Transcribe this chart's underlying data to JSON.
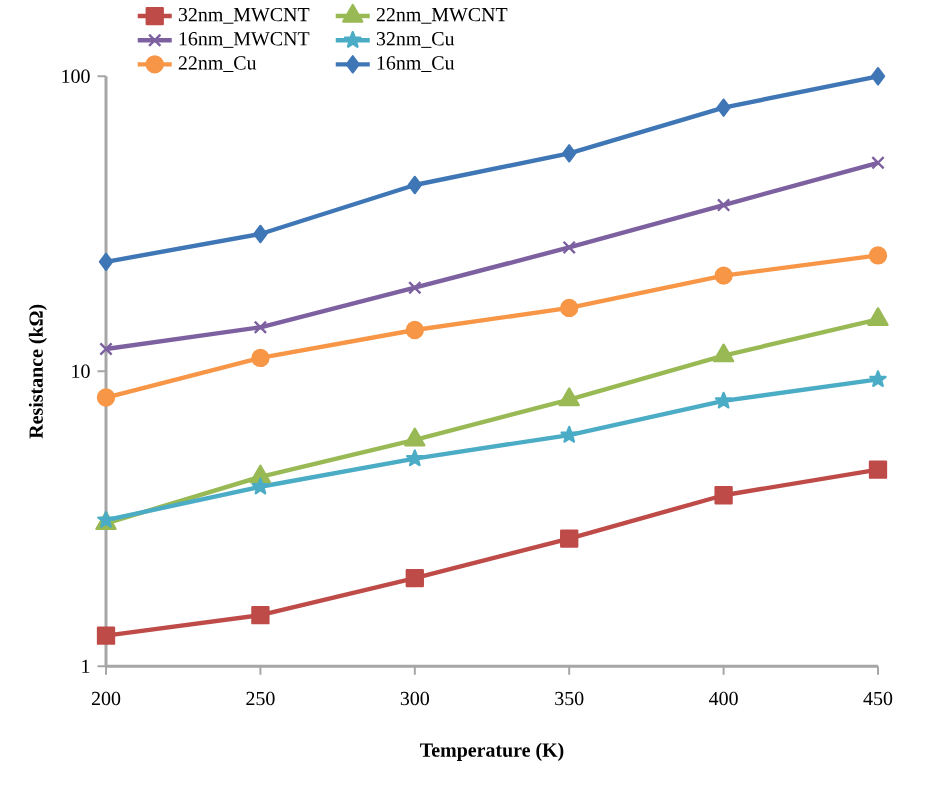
{
  "chart_data": {
    "type": "line",
    "xlabel": "Temperature (K)",
    "ylabel": "Resistance (kΩ)",
    "x": [
      200,
      250,
      300,
      350,
      400,
      450
    ],
    "log": "y",
    "xlim": [
      200,
      450
    ],
    "xticks": [
      200,
      250,
      300,
      350,
      400,
      450
    ],
    "ylim": [
      1,
      100
    ],
    "yticks": [
      1,
      10,
      100
    ],
    "legend": "top",
    "grid": false,
    "line_style": "solid",
    "series": [
      {
        "name": "32nm_MWCNT",
        "color": "#be4b48",
        "marker": "square",
        "values": [
          1.27,
          1.49,
          1.99,
          2.71,
          3.8,
          4.64
        ]
      },
      {
        "name": "22nm_MWCNT",
        "color": "#98b954",
        "marker": "triangle",
        "values": [
          3.05,
          4.39,
          5.86,
          8.02,
          11.3,
          15.0
        ]
      },
      {
        "name": "16nm_MWCNT",
        "color": "#7d60a0",
        "marker": "cross",
        "values": [
          11.9,
          14.1,
          19.2,
          26.3,
          36.6,
          50.9
        ]
      },
      {
        "name": "32nm_Cu",
        "color": "#4bacc6",
        "marker": "star",
        "values": [
          3.13,
          4.06,
          5.06,
          6.08,
          7.94,
          9.39
        ]
      },
      {
        "name": "22nm_Cu",
        "color": "#f79646",
        "marker": "circle",
        "values": [
          8.15,
          11.1,
          13.8,
          16.4,
          21.1,
          24.7
        ]
      },
      {
        "name": "16nm_Cu",
        "color": "#3f76b6",
        "marker": "diamond",
        "values": [
          23.5,
          29.2,
          42.8,
          54.8,
          78.3,
          100
        ]
      }
    ]
  }
}
